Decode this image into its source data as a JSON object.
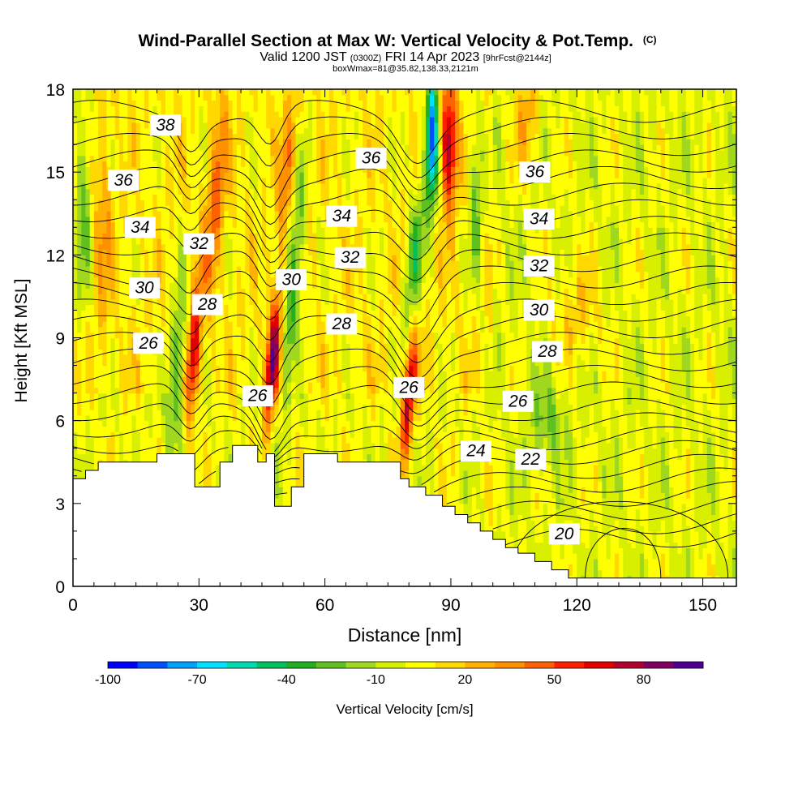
{
  "chart_data": {
    "type": "heatmap",
    "title": "Wind-Parallel Section at Max W: Vertical Velocity & Pot.Temp.",
    "title_mark": "(C)",
    "subtitle_parts": [
      "Valid 1200 JST",
      "(0300Z)",
      "FRI 14 Apr 2023",
      "[9hrFcst@2144z]"
    ],
    "subtitle2": "boxWmax=81@35.82,138.33,2121m",
    "xlabel": "Distance [nm]",
    "ylabel": "Height [Kft MSL]",
    "xlim": [
      0,
      158
    ],
    "ylim": [
      0,
      18
    ],
    "x_ticks": [
      "0",
      "30",
      "60",
      "90",
      "120",
      "150"
    ],
    "y_ticks": [
      "0",
      "3",
      "6",
      "9",
      "12",
      "15",
      "18"
    ],
    "colorbar": {
      "label": "Vertical Velocity [cm/s]",
      "tick_labels": [
        "-100",
        "-70",
        "-40",
        "-10",
        "20",
        "50",
        "80"
      ],
      "tick_values": [
        -100,
        -70,
        -40,
        -10,
        20,
        50,
        80
      ],
      "min": -100,
      "max": 100,
      "colors": [
        "#0000ff",
        "#0050ff",
        "#00a0ff",
        "#00e0ff",
        "#00d8b0",
        "#00c060",
        "#20b020",
        "#60c020",
        "#a0d820",
        "#d8f000",
        "#ffff00",
        "#ffd800",
        "#ffb000",
        "#ff9000",
        "#ff6000",
        "#ff2000",
        "#e00000",
        "#b00030",
        "#800060",
        "#500090"
      ]
    },
    "updrafts": [
      {
        "x": 29,
        "y": 8.5,
        "value": 60
      },
      {
        "x": 48,
        "y": 8,
        "value": 75
      },
      {
        "x": 81,
        "y": 7,
        "value": 70
      },
      {
        "x": 89,
        "y": 16,
        "value": 70
      }
    ],
    "downdrafts": [
      {
        "x": 86,
        "y": 16,
        "value": -85
      },
      {
        "x": 82,
        "y": 11,
        "value": -35
      },
      {
        "x": 46,
        "y": 15,
        "value": -35
      }
    ],
    "terrain": [
      [
        0,
        3.9
      ],
      [
        3,
        3.9
      ],
      [
        3,
        4.2
      ],
      [
        6,
        4.2
      ],
      [
        6,
        4.5
      ],
      [
        20,
        4.5
      ],
      [
        20,
        4.8
      ],
      [
        29,
        4.8
      ],
      [
        29,
        3.6
      ],
      [
        35,
        3.6
      ],
      [
        35,
        4.5
      ],
      [
        38,
        4.5
      ],
      [
        38,
        5.1
      ],
      [
        44,
        5.1
      ],
      [
        44,
        4.5
      ],
      [
        46,
        4.5
      ],
      [
        46,
        4.8
      ],
      [
        48,
        4.8
      ],
      [
        48,
        2.9
      ],
      [
        52,
        2.9
      ],
      [
        52,
        3.6
      ],
      [
        55,
        3.6
      ],
      [
        55,
        4.8
      ],
      [
        63,
        4.8
      ],
      [
        63,
        4.5
      ],
      [
        78,
        4.5
      ],
      [
        78,
        3.9
      ],
      [
        80,
        3.9
      ],
      [
        80,
        3.6
      ],
      [
        84,
        3.6
      ],
      [
        84,
        3.3
      ],
      [
        88,
        3.3
      ],
      [
        88,
        2.9
      ],
      [
        91,
        2.9
      ],
      [
        91,
        2.6
      ],
      [
        94,
        2.6
      ],
      [
        94,
        2.3
      ],
      [
        97,
        2.3
      ],
      [
        97,
        2.0
      ],
      [
        100,
        2.0
      ],
      [
        100,
        1.7
      ],
      [
        103,
        1.7
      ],
      [
        103,
        1.4
      ],
      [
        106,
        1.4
      ],
      [
        106,
        1.2
      ],
      [
        110,
        1.2
      ],
      [
        110,
        0.9
      ],
      [
        114,
        0.9
      ],
      [
        114,
        0.6
      ],
      [
        118,
        0.6
      ],
      [
        118,
        0.3
      ],
      [
        158,
        0.3
      ]
    ],
    "isentrope_labels": [
      {
        "text": "38",
        "x": 22,
        "y": 16.7
      },
      {
        "text": "36",
        "x": 12,
        "y": 14.7
      },
      {
        "text": "34",
        "x": 16,
        "y": 13.0
      },
      {
        "text": "32",
        "x": 30,
        "y": 12.4
      },
      {
        "text": "30",
        "x": 17,
        "y": 10.8
      },
      {
        "text": "28",
        "x": 32,
        "y": 10.2
      },
      {
        "text": "26",
        "x": 18,
        "y": 8.8
      },
      {
        "text": "26",
        "x": 44,
        "y": 6.9
      },
      {
        "text": "30",
        "x": 52,
        "y": 11.1
      },
      {
        "text": "28",
        "x": 64,
        "y": 9.5
      },
      {
        "text": "32",
        "x": 66,
        "y": 11.9
      },
      {
        "text": "34",
        "x": 64,
        "y": 13.4
      },
      {
        "text": "36",
        "x": 71,
        "y": 15.5
      },
      {
        "text": "26",
        "x": 80,
        "y": 7.2
      },
      {
        "text": "24",
        "x": 96,
        "y": 4.9
      },
      {
        "text": "22",
        "x": 109,
        "y": 4.6
      },
      {
        "text": "20",
        "x": 117,
        "y": 1.9
      },
      {
        "text": "26",
        "x": 106,
        "y": 6.7
      },
      {
        "text": "28",
        "x": 113,
        "y": 8.5
      },
      {
        "text": "30",
        "x": 111,
        "y": 10.0
      },
      {
        "text": "32",
        "x": 111,
        "y": 11.6
      },
      {
        "text": "34",
        "x": 111,
        "y": 13.3
      },
      {
        "text": "36",
        "x": 110,
        "y": 15.0
      }
    ]
  }
}
